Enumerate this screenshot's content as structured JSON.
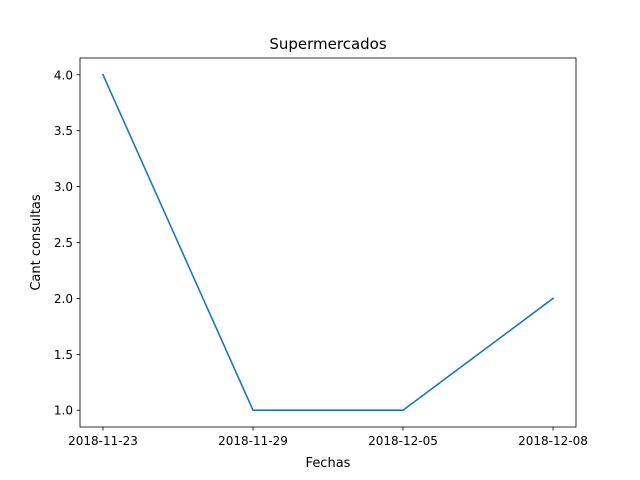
{
  "chart_data": {
    "type": "line",
    "title": "Supermercados",
    "xlabel": "Fechas",
    "ylabel": "Cant consultas",
    "categories": [
      "2018-11-23",
      "2018-11-29",
      "2018-12-05",
      "2018-12-08"
    ],
    "series": [
      {
        "values": [
          4.0,
          1.0,
          1.0,
          2.0
        ],
        "color": "#1f77b4"
      }
    ],
    "ylim": [
      0.85,
      4.15
    ],
    "yticks": [
      "1.0",
      "1.5",
      "2.0",
      "2.5",
      "3.0",
      "3.5",
      "4.0"
    ],
    "grid": false,
    "legend": "none"
  }
}
